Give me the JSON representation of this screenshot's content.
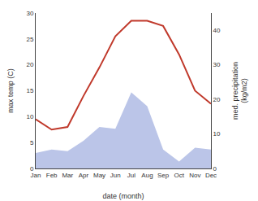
{
  "chart_data": {
    "type": "line",
    "xlabel": "date (month)",
    "ylabel": "max temp (C)",
    "y2label": "med. precipitation\n(kg/m2)",
    "categories": [
      "Jan",
      "Feb",
      "Mar",
      "Apr",
      "May",
      "Jun",
      "Jul",
      "Aug",
      "Sep",
      "Oct",
      "Nov",
      "Dec"
    ],
    "series": [
      {
        "type": "area",
        "axis": "y2",
        "color": "#bbc5e8",
        "values": [
          4.5,
          5.5,
          5.0,
          8.0,
          12.0,
          11.5,
          22.0,
          18.0,
          5.5,
          2.0,
          6.0,
          5.5
        ]
      },
      {
        "type": "line",
        "color": "#c0392b",
        "values": [
          9.5,
          7.5,
          8.0,
          14.0,
          19.5,
          25.5,
          28.5,
          28.5,
          27.5,
          22.0,
          15.0,
          12.5
        ]
      }
    ],
    "ylim": [
      0,
      30
    ],
    "yticks": [
      0,
      5,
      10,
      15,
      20,
      25,
      30
    ],
    "y2lim": [
      0,
      45
    ],
    "y2ticks": [
      0,
      10,
      20,
      30,
      40
    ],
    "grid": false
  }
}
